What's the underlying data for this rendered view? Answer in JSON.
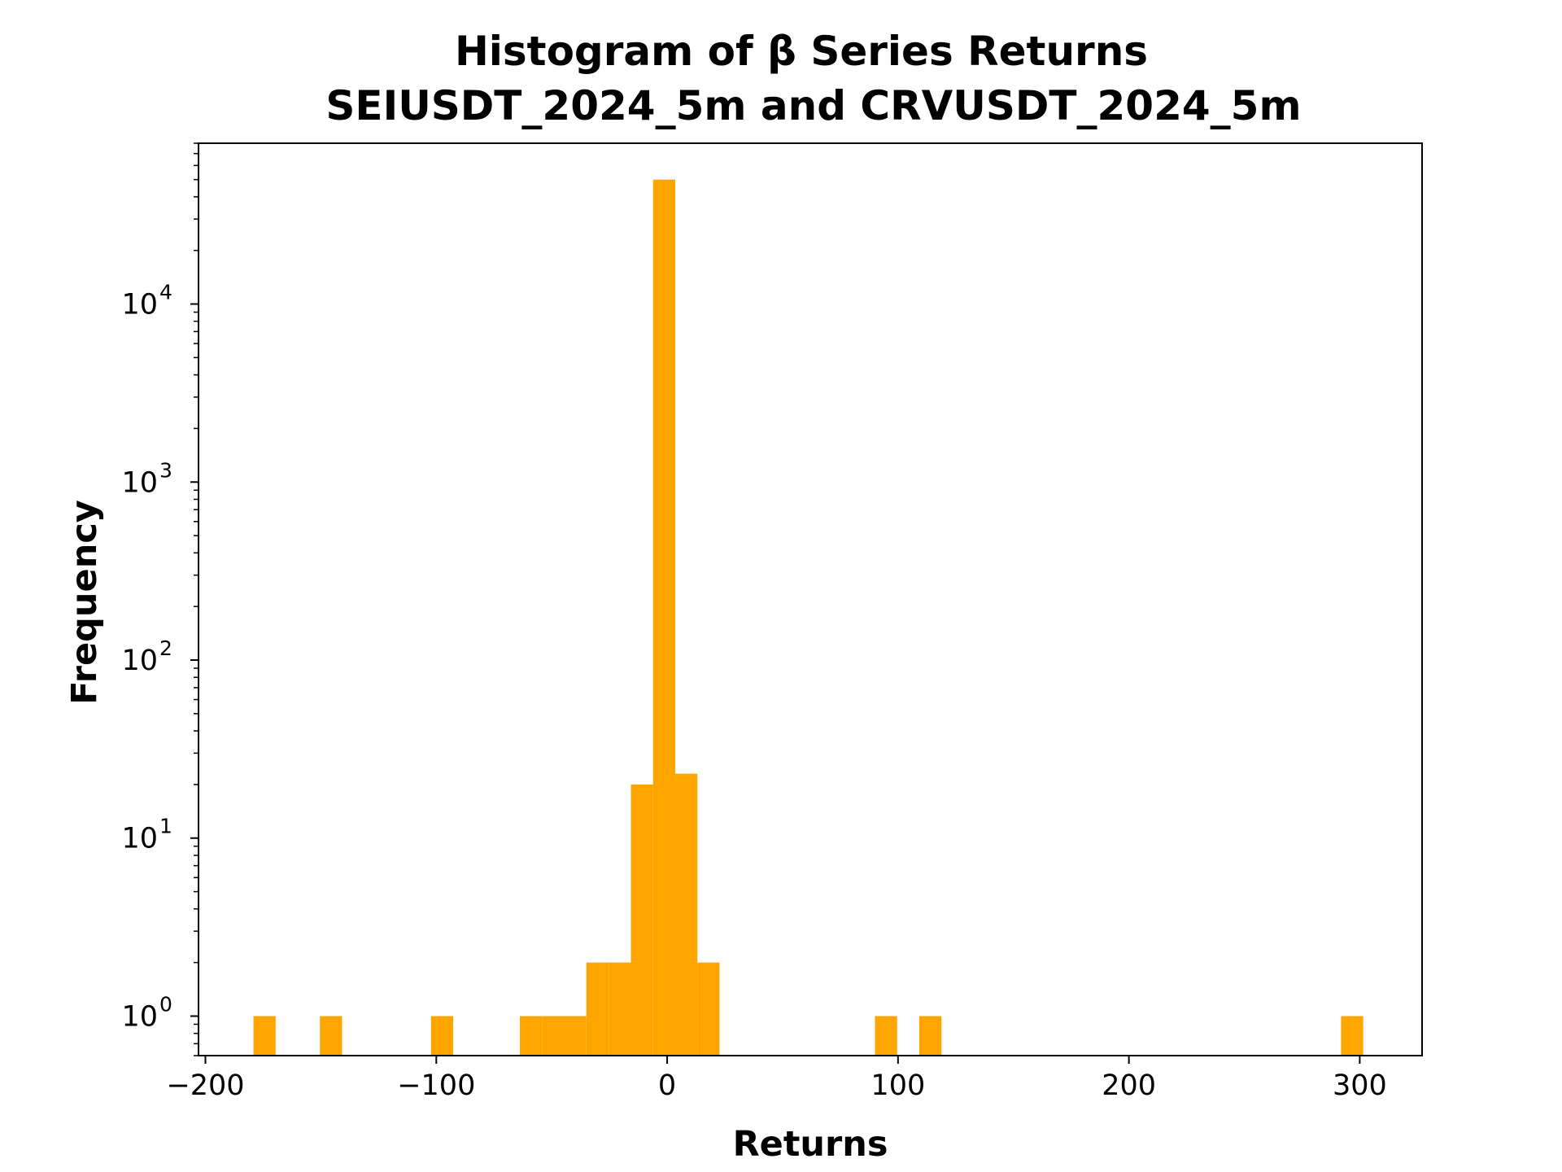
{
  "chart_data": {
    "type": "bar",
    "title": "Histogram of β Series Returns",
    "subtitle": "SEIUSDT_2024_5m and CRVUSDT_2024_5m",
    "xlabel": "Returns",
    "ylabel": "Frequency",
    "yscale": "log",
    "xlim": [
      -203,
      327
    ],
    "ylim": [
      0.6,
      80000
    ],
    "x_ticks": [
      -200,
      -100,
      0,
      100,
      200,
      300
    ],
    "x_tick_labels": [
      "−200",
      "−100",
      "0",
      "100",
      "200",
      "300"
    ],
    "y_ticks": [
      1,
      10,
      100,
      1000,
      10000
    ],
    "y_tick_base": "10",
    "y_tick_exponents": [
      "0",
      "1",
      "2",
      "3",
      "4"
    ],
    "bin_width": 9.62,
    "bars": [
      {
        "x0": -179.2,
        "x1": -169.6,
        "value": 1
      },
      {
        "x0": -150.4,
        "x1": -140.8,
        "value": 1
      },
      {
        "x0": -102.3,
        "x1": -92.7,
        "value": 1
      },
      {
        "x0": -63.8,
        "x1": -54.2,
        "value": 1
      },
      {
        "x0": -54.2,
        "x1": -44.6,
        "value": 1
      },
      {
        "x0": -44.6,
        "x1": -35.0,
        "value": 1
      },
      {
        "x0": -35.0,
        "x1": -25.3,
        "value": 2
      },
      {
        "x0": -25.3,
        "x1": -15.7,
        "value": 2
      },
      {
        "x0": -15.7,
        "x1": -6.1,
        "value": 20
      },
      {
        "x0": -6.1,
        "x1": 3.5,
        "value": 50000
      },
      {
        "x0": 3.5,
        "x1": 13.1,
        "value": 23
      },
      {
        "x0": 13.1,
        "x1": 22.7,
        "value": 2
      },
      {
        "x0": 90.0,
        "x1": 99.6,
        "value": 1
      },
      {
        "x0": 109.2,
        "x1": 118.8,
        "value": 1
      },
      {
        "x0": 291.9,
        "x1": 301.5,
        "value": 1
      }
    ],
    "bar_color": "#ffa500",
    "grid": false,
    "legend": "none"
  }
}
